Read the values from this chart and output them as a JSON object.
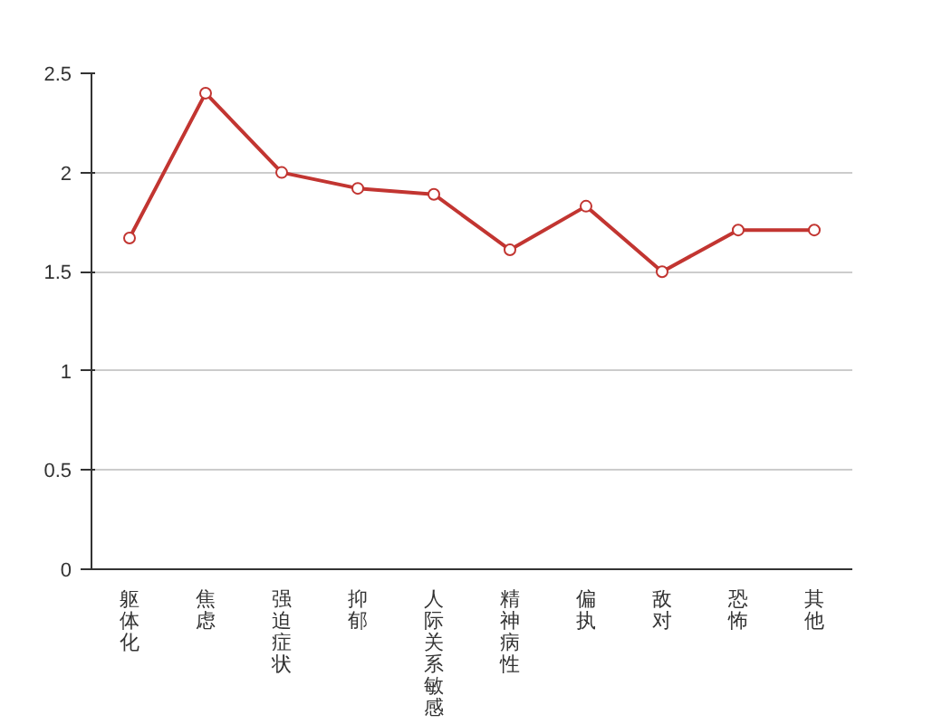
{
  "chart_data": {
    "type": "line",
    "categories": [
      "躯体化",
      "焦虑",
      "强迫症状",
      "抑郁",
      "人际关系敏感",
      "精神病性",
      "偏执",
      "敌对",
      "恐怖",
      "其他"
    ],
    "series": [
      {
        "color": "#c23531",
        "values": [
          1.67,
          2.4,
          2.0,
          1.92,
          1.89,
          1.61,
          1.83,
          1.5,
          1.71,
          1.71
        ]
      }
    ],
    "ylim": [
      0,
      2.5
    ],
    "yticks": [
      0,
      0.5,
      1,
      1.5,
      2,
      2.5
    ],
    "grid": "y",
    "marker": "circle",
    "line_style": "solid"
  }
}
